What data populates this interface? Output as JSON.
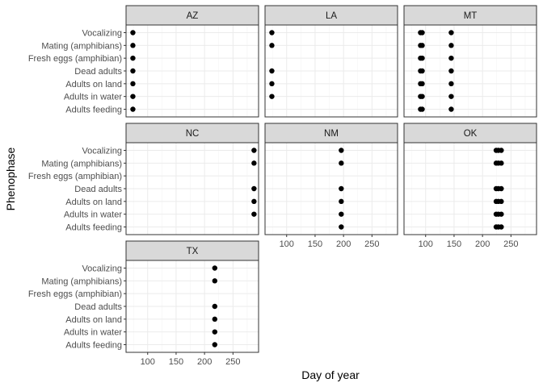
{
  "chart_data": {
    "type": "scatter",
    "xlabel": "Day of year",
    "ylabel": "Phenophase",
    "xlim": [
      62,
      295
    ],
    "xticks": [
      100,
      150,
      200,
      250
    ],
    "categories": [
      "Adults feeding",
      "Adults in water",
      "Adults on land",
      "Dead adults",
      "Fresh eggs (amphibian)",
      "Mating (amphibians)",
      "Vocalizing"
    ],
    "grid": true,
    "legend": "none",
    "colors": {
      "point": "#000000",
      "strip": "#d9d9d9",
      "panel_border": "#333333",
      "grid_major": "#ebebeb",
      "grid_minor": "#f4f4f4"
    },
    "facets": [
      {
        "label": "AZ",
        "points": [
          {
            "y": "Vocalizing",
            "x": [
              74
            ]
          },
          {
            "y": "Mating (amphibians)",
            "x": [
              74
            ]
          },
          {
            "y": "Fresh eggs (amphibian)",
            "x": [
              74
            ]
          },
          {
            "y": "Dead adults",
            "x": [
              74
            ]
          },
          {
            "y": "Adults on land",
            "x": [
              74
            ]
          },
          {
            "y": "Adults in water",
            "x": [
              74
            ]
          },
          {
            "y": "Adults feeding",
            "x": [
              74
            ]
          }
        ]
      },
      {
        "label": "LA",
        "points": [
          {
            "y": "Vocalizing",
            "x": [
              74
            ]
          },
          {
            "y": "Mating (amphibians)",
            "x": [
              74
            ]
          },
          {
            "y": "Dead adults",
            "x": [
              74
            ]
          },
          {
            "y": "Adults on land",
            "x": [
              74
            ]
          },
          {
            "y": "Adults in water",
            "x": [
              74
            ]
          }
        ]
      },
      {
        "label": "MT",
        "points": [
          {
            "y": "Vocalizing",
            "x": [
              91,
              94,
              145
            ]
          },
          {
            "y": "Mating (amphibians)",
            "x": [
              91,
              94,
              145
            ]
          },
          {
            "y": "Fresh eggs (amphibian)",
            "x": [
              91,
              94,
              145
            ]
          },
          {
            "y": "Dead adults",
            "x": [
              91,
              94,
              145
            ]
          },
          {
            "y": "Adults on land",
            "x": [
              91,
              94,
              145
            ]
          },
          {
            "y": "Adults in water",
            "x": [
              91,
              94,
              145
            ]
          },
          {
            "y": "Adults feeding",
            "x": [
              91,
              94,
              145
            ]
          }
        ]
      },
      {
        "label": "NC",
        "points": [
          {
            "y": "Vocalizing",
            "x": [
              287
            ]
          },
          {
            "y": "Mating (amphibians)",
            "x": [
              287
            ]
          },
          {
            "y": "Dead adults",
            "x": [
              287
            ]
          },
          {
            "y": "Adults on land",
            "x": [
              287
            ]
          },
          {
            "y": "Adults in water",
            "x": [
              287
            ]
          }
        ]
      },
      {
        "label": "NM",
        "points": [
          {
            "y": "Vocalizing",
            "x": [
              196
            ]
          },
          {
            "y": "Mating (amphibians)",
            "x": [
              196
            ]
          },
          {
            "y": "Dead adults",
            "x": [
              196
            ]
          },
          {
            "y": "Adults on land",
            "x": [
              196
            ]
          },
          {
            "y": "Adults in water",
            "x": [
              196
            ]
          },
          {
            "y": "Adults feeding",
            "x": [
              196
            ]
          }
        ]
      },
      {
        "label": "OK",
        "points": [
          {
            "y": "Vocalizing",
            "x": [
              224,
              228,
              233
            ]
          },
          {
            "y": "Mating (amphibians)",
            "x": [
              224,
              228,
              233
            ]
          },
          {
            "y": "Dead adults",
            "x": [
              224,
              228,
              233
            ]
          },
          {
            "y": "Adults on land",
            "x": [
              224,
              228,
              233
            ]
          },
          {
            "y": "Adults in water",
            "x": [
              224,
              228,
              233
            ]
          },
          {
            "y": "Adults feeding",
            "x": [
              224,
              228,
              233
            ]
          }
        ]
      },
      {
        "label": "TX",
        "points": [
          {
            "y": "Vocalizing",
            "x": [
              218
            ]
          },
          {
            "y": "Mating (amphibians)",
            "x": [
              218
            ]
          },
          {
            "y": "Dead adults",
            "x": [
              218
            ]
          },
          {
            "y": "Adults on land",
            "x": [
              218
            ]
          },
          {
            "y": "Adults in water",
            "x": [
              218
            ]
          },
          {
            "y": "Adults feeding",
            "x": [
              218
            ]
          }
        ]
      }
    ]
  }
}
